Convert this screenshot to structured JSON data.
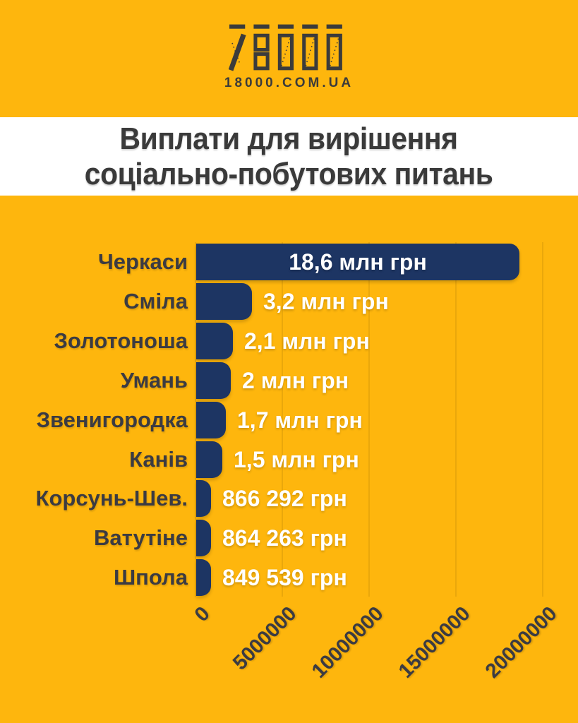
{
  "logo": {
    "brand": "18000",
    "site": "18000.COM.UA"
  },
  "title": {
    "line1": "Виплати для вирішення",
    "line2": "соціально-побутових питань"
  },
  "chart_data": {
    "type": "bar",
    "orientation": "horizontal",
    "title": "Виплати для вирішення соціально-побутових питань",
    "categories": [
      "Черкаси",
      "Сміла",
      "Золотоноша",
      "Умань",
      "Звенигородка",
      "Канів",
      "Корсунь-Шев.",
      "Ватутіне",
      "Шпола"
    ],
    "values": [
      18600000,
      3200000,
      2100000,
      2000000,
      1700000,
      1500000,
      866292,
      864263,
      849539
    ],
    "value_labels": [
      "18,6 млн грн",
      "3,2 млн грн",
      "2,1 млн грн",
      "2 млн грн",
      "1,7 млн грн",
      "1,5 млн грн",
      "866 292 грн",
      "864 263 грн",
      "849 539 грн"
    ],
    "value_label_unit": "грн",
    "x_ticks": [
      "0",
      "5000000",
      "10000000",
      "15000000",
      "20000000"
    ],
    "x_tick_values": [
      0,
      5000000,
      10000000,
      15000000,
      20000000
    ],
    "xlim": [
      0,
      20000000
    ],
    "grid": true,
    "legend": false,
    "colors": {
      "background": "#feb60d",
      "bar": "#1d3563",
      "value_text": "#ffffff",
      "label_text": "#3b3b42",
      "title_text": "#3a3a3a",
      "title_band": "#ffffff",
      "gridline": "rgba(110,80,0,0.14)"
    }
  }
}
